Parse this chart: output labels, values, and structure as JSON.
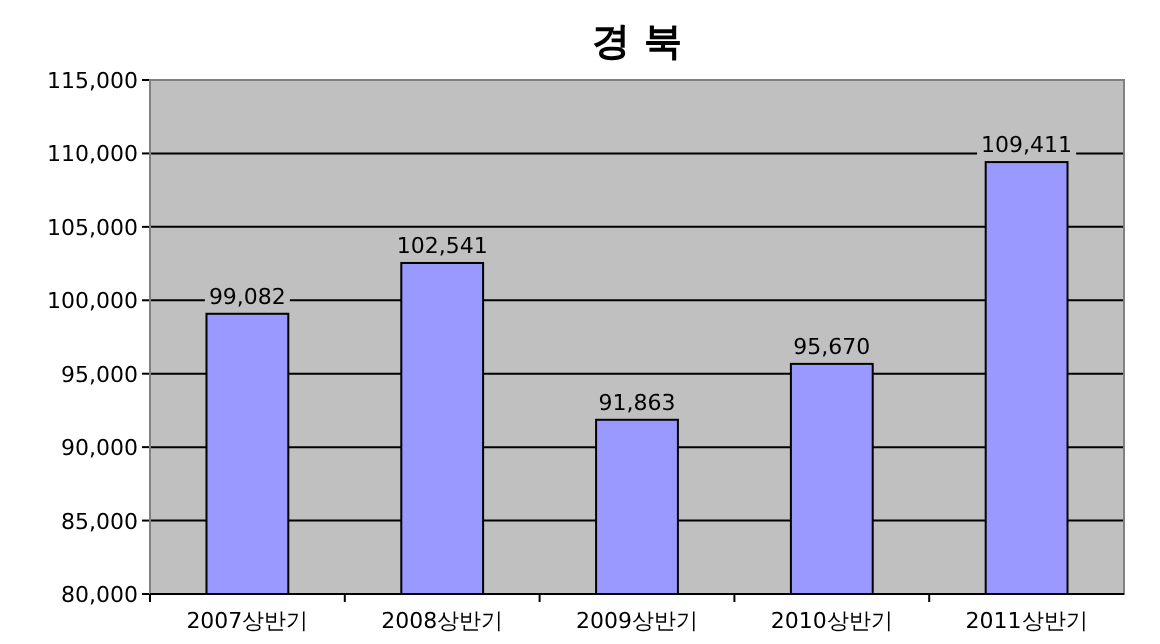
{
  "chart_data": {
    "type": "bar",
    "title": "경 북",
    "categories": [
      "2007상반기",
      "2008상반기",
      "2009상반기",
      "2010상반기",
      "2011상반기"
    ],
    "values": [
      99082,
      102541,
      91863,
      95670,
      109411
    ],
    "value_labels": [
      "99,082",
      "102,541",
      "91,863",
      "95,670",
      "109,411"
    ],
    "color": "#9999ff",
    "ylim": [
      80000,
      115000
    ],
    "yticks": [
      {
        "value": 80000,
        "label": "80,000"
      },
      {
        "value": 85000,
        "label": "85,000"
      },
      {
        "value": 90000,
        "label": "90,000"
      },
      {
        "value": 95000,
        "label": "95,000"
      },
      {
        "value": 100000,
        "label": "100,000"
      },
      {
        "value": 105000,
        "label": "105,000"
      },
      {
        "value": 110000,
        "label": "110,000"
      },
      {
        "value": 115000,
        "label": "115,000"
      }
    ],
    "grid": "y"
  }
}
